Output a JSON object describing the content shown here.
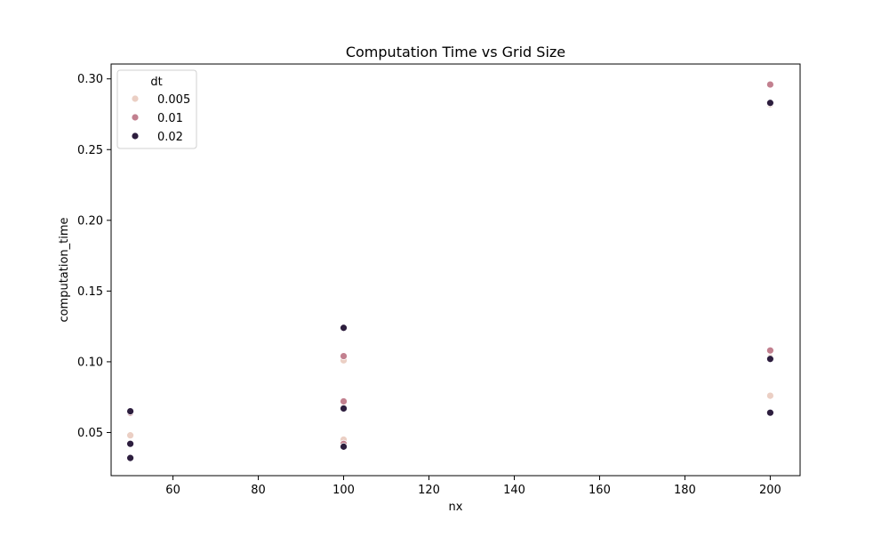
{
  "chart_data": {
    "type": "scatter",
    "title": "Computation Time vs Grid Size",
    "xlabel": "nx",
    "ylabel": "computation_time",
    "xlim": [
      45.5,
      207
    ],
    "ylim": [
      0.0195,
      0.3105
    ],
    "xticks": [
      60,
      80,
      100,
      120,
      140,
      160,
      180,
      200
    ],
    "yticks": [
      0.05,
      0.1,
      0.15,
      0.2,
      0.25,
      0.3
    ],
    "xtick_labels": [
      "60",
      "80",
      "100",
      "120",
      "140",
      "160",
      "180",
      "200"
    ],
    "ytick_labels": [
      "0.05",
      "0.10",
      "0.15",
      "0.20",
      "0.25",
      "0.30"
    ],
    "grid": false,
    "legend": {
      "title": "dt",
      "position": "top-left"
    },
    "series": [
      {
        "name": "0.005",
        "color": "#ebcfc4",
        "points": [
          [
            50,
            0.064
          ],
          [
            50,
            0.048
          ],
          [
            50,
            0.042
          ],
          [
            50,
            0.032
          ],
          [
            100,
            0.101
          ],
          [
            100,
            0.068
          ],
          [
            100,
            0.045
          ],
          [
            100,
            0.042
          ],
          [
            200,
            0.282
          ],
          [
            200,
            0.103
          ],
          [
            200,
            0.076
          ],
          [
            200,
            0.064
          ]
        ]
      },
      {
        "name": "0.01",
        "color": "#c2808f",
        "points": [
          [
            50,
            0.064
          ],
          [
            50,
            0.042
          ],
          [
            50,
            0.032
          ],
          [
            100,
            0.104
          ],
          [
            100,
            0.072
          ],
          [
            100,
            0.042
          ],
          [
            200,
            0.296
          ],
          [
            200,
            0.108
          ],
          [
            200,
            0.064
          ]
        ]
      },
      {
        "name": "0.02",
        "color": "#2d1e3e",
        "points": [
          [
            50,
            0.065
          ],
          [
            50,
            0.042
          ],
          [
            50,
            0.032
          ],
          [
            100,
            0.124
          ],
          [
            100,
            0.067
          ],
          [
            100,
            0.04
          ],
          [
            200,
            0.283
          ],
          [
            200,
            0.102
          ],
          [
            200,
            0.064
          ]
        ]
      }
    ]
  }
}
